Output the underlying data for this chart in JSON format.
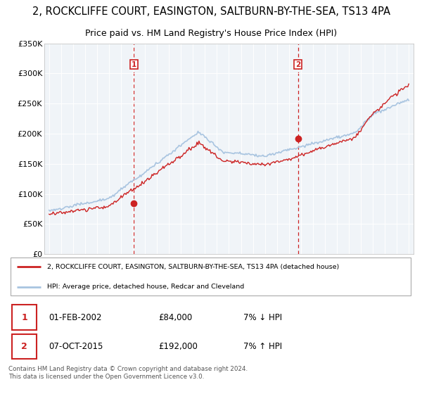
{
  "title": "2, ROCKCLIFFE COURT, EASINGTON, SALTBURN-BY-THE-SEA, TS13 4PA",
  "subtitle": "Price paid vs. HM Land Registry's House Price Index (HPI)",
  "title_fontsize": 10.5,
  "subtitle_fontsize": 9,
  "ylim": [
    0,
    350000
  ],
  "yticks": [
    0,
    50000,
    100000,
    150000,
    200000,
    250000,
    300000,
    350000
  ],
  "sale1_date": 2002.08,
  "sale1_price": 84000,
  "sale1_label": "1",
  "sale2_date": 2015.77,
  "sale2_price": 192000,
  "sale2_label": "2",
  "hpi_color": "#a8c4e0",
  "price_color": "#cc2222",
  "dashed_color": "#cc2222",
  "background_plot": "#f0f4f8",
  "legend_line1": "2, ROCKCLIFFE COURT, EASINGTON, SALTBURN-BY-THE-SEA, TS13 4PA (detached house)",
  "legend_line2": "HPI: Average price, detached house, Redcar and Cleveland",
  "annotation1_date": "01-FEB-2002",
  "annotation1_price": "£84,000",
  "annotation1_hpi": "7% ↓ HPI",
  "annotation2_date": "07-OCT-2015",
  "annotation2_price": "£192,000",
  "annotation2_hpi": "7% ↑ HPI",
  "footer": "Contains HM Land Registry data © Crown copyright and database right 2024.\nThis data is licensed under the Open Government Licence v3.0."
}
